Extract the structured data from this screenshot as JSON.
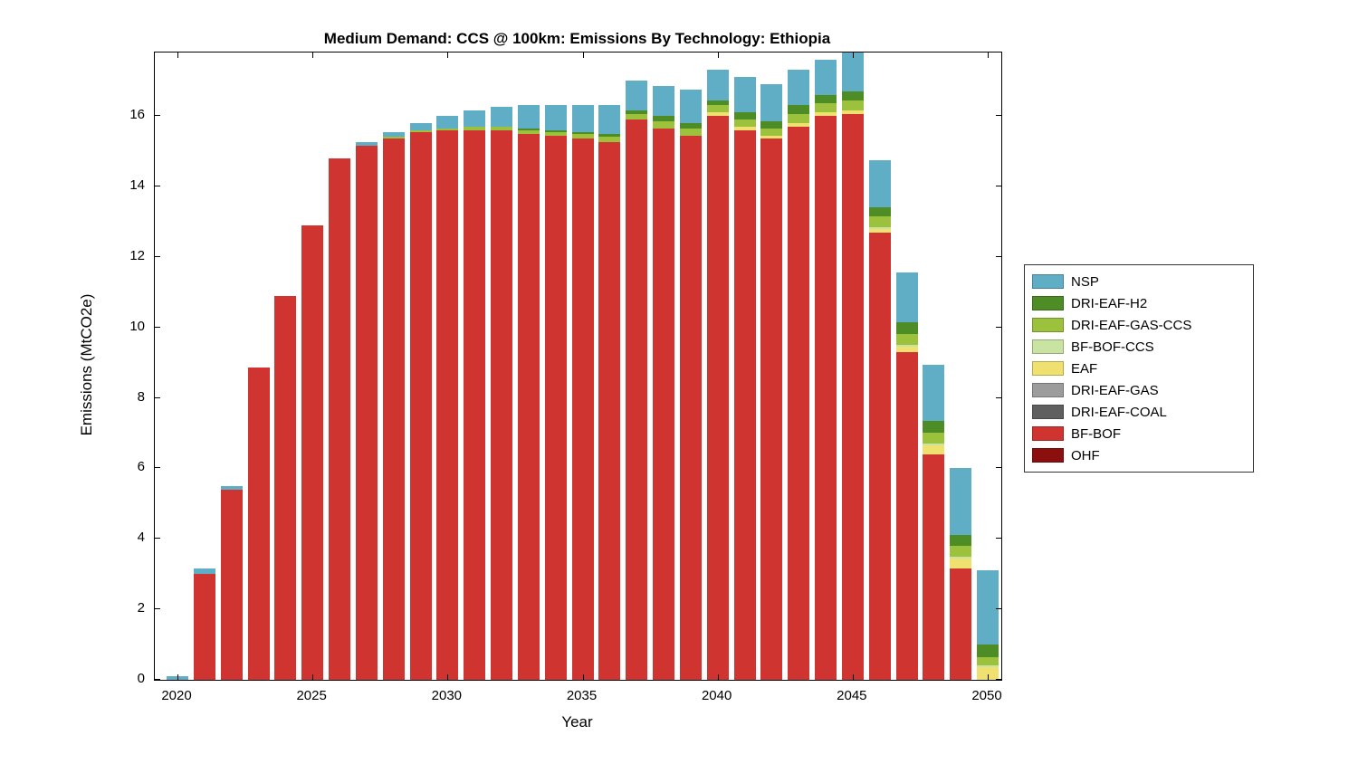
{
  "title": "Medium Demand: CCS @ 100km: Emissions By Technology: Ethiopia",
  "xlabel": "Year",
  "ylabel": "Emissions (MtCO2e)",
  "chart_data": {
    "type": "bar",
    "stacked": true,
    "title": "Medium Demand: CCS @ 100km: Emissions By Technology: Ethiopia",
    "xlabel": "Year",
    "ylabel": "Emissions (MtCO2e)",
    "ylim": [
      0,
      17.8
    ],
    "grid": false,
    "legend_position": "right-outside",
    "x_ticks": [
      2020,
      2025,
      2030,
      2035,
      2040,
      2045,
      2050
    ],
    "y_ticks": [
      0,
      2,
      4,
      6,
      8,
      10,
      12,
      14,
      16
    ],
    "years": [
      2020,
      2021,
      2022,
      2023,
      2024,
      2025,
      2026,
      2027,
      2028,
      2029,
      2030,
      2031,
      2032,
      2033,
      2034,
      2035,
      2036,
      2037,
      2038,
      2039,
      2040,
      2041,
      2042,
      2043,
      2044,
      2045,
      2046,
      2047,
      2048,
      2049,
      2050
    ],
    "series": [
      {
        "name": "OHF",
        "color": "#8B0F0F",
        "values": [
          0,
          0,
          0,
          0,
          0,
          0,
          0,
          0,
          0,
          0,
          0,
          0,
          0,
          0,
          0,
          0,
          0,
          0,
          0,
          0,
          0,
          0,
          0,
          0,
          0,
          0,
          0,
          0,
          0,
          0,
          0
        ]
      },
      {
        "name": "BF-BOF",
        "color": "#CF3430",
        "values": [
          0,
          3.0,
          5.4,
          8.85,
          10.9,
          12.9,
          14.8,
          15.15,
          15.35,
          15.55,
          15.6,
          15.6,
          15.6,
          15.5,
          15.45,
          15.35,
          15.25,
          15.9,
          15.65,
          15.45,
          16.0,
          15.6,
          15.35,
          15.7,
          16.0,
          16.05,
          12.7,
          9.3,
          6.4,
          3.15,
          0
        ]
      },
      {
        "name": "DRI-EAF-COAL",
        "color": "#5F5F5F",
        "values": [
          0,
          0,
          0,
          0,
          0,
          0,
          0,
          0,
          0,
          0,
          0,
          0,
          0,
          0,
          0,
          0,
          0,
          0,
          0,
          0,
          0,
          0,
          0,
          0,
          0,
          0,
          0,
          0,
          0,
          0,
          0
        ]
      },
      {
        "name": "DRI-EAF-GAS",
        "color": "#9C9C9C",
        "values": [
          0,
          0,
          0,
          0,
          0,
          0,
          0,
          0,
          0,
          0,
          0,
          0,
          0,
          0,
          0,
          0,
          0,
          0,
          0,
          0,
          0,
          0,
          0,
          0,
          0,
          0,
          0,
          0,
          0,
          0,
          0
        ]
      },
      {
        "name": "EAF",
        "color": "#EFE070",
        "values": [
          0,
          0,
          0,
          0,
          0,
          0,
          0,
          0,
          0,
          0,
          0,
          0,
          0,
          0,
          0,
          0,
          0,
          0,
          0,
          0,
          0.1,
          0.1,
          0.1,
          0.1,
          0.1,
          0.1,
          0.1,
          0.15,
          0.25,
          0.3,
          0.35
        ]
      },
      {
        "name": "BF-BOF-CCS",
        "color": "#C9E3A2",
        "values": [
          0,
          0,
          0,
          0,
          0,
          0,
          0,
          0,
          0,
          0,
          0,
          0,
          0,
          0,
          0,
          0,
          0,
          0,
          0,
          0,
          0,
          0,
          0,
          0,
          0,
          0,
          0.05,
          0.05,
          0.05,
          0.05,
          0.05
        ]
      },
      {
        "name": "DRI-EAF-GAS-CCS",
        "color": "#9CC13C",
        "values": [
          0,
          0,
          0,
          0,
          0,
          0,
          0,
          0,
          0.05,
          0.05,
          0.05,
          0.1,
          0.1,
          0.1,
          0.1,
          0.15,
          0.15,
          0.15,
          0.2,
          0.2,
          0.2,
          0.2,
          0.2,
          0.25,
          0.25,
          0.3,
          0.3,
          0.3,
          0.3,
          0.3,
          0.25
        ]
      },
      {
        "name": "DRI-EAF-H2",
        "color": "#4E8C26",
        "values": [
          0,
          0,
          0,
          0,
          0,
          0,
          0,
          0,
          0,
          0,
          0,
          0,
          0,
          0.05,
          0.05,
          0.05,
          0.1,
          0.1,
          0.15,
          0.15,
          0.15,
          0.2,
          0.2,
          0.25,
          0.25,
          0.25,
          0.25,
          0.35,
          0.35,
          0.3,
          0.35
        ]
      },
      {
        "name": "NSP",
        "color": "#5FAEC6",
        "values": [
          0.1,
          0.15,
          0.1,
          0,
          0,
          0,
          0,
          0.1,
          0.15,
          0.2,
          0.35,
          0.45,
          0.55,
          0.65,
          0.7,
          0.75,
          0.8,
          0.85,
          0.85,
          0.95,
          0.85,
          1.0,
          1.05,
          1.0,
          1.0,
          1.1,
          1.35,
          1.4,
          1.6,
          1.9,
          2.1
        ]
      }
    ],
    "legend": [
      "NSP",
      "DRI-EAF-H2",
      "DRI-EAF-GAS-CCS",
      "BF-BOF-CCS",
      "EAF",
      "DRI-EAF-GAS",
      "DRI-EAF-COAL",
      "BF-BOF",
      "OHF"
    ]
  }
}
